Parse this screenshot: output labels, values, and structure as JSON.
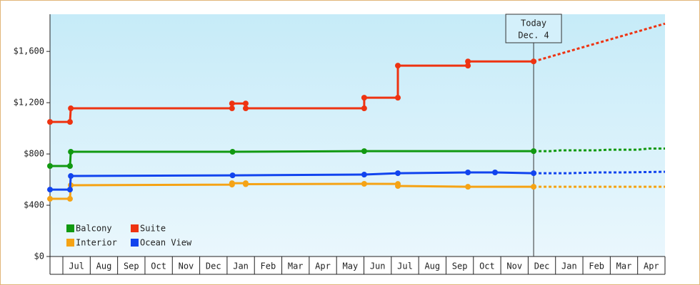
{
  "chart_data": {
    "type": "line",
    "step": true,
    "ylim": [
      0,
      1890
    ],
    "yticks": [
      {
        "value": 0,
        "label": "$0"
      },
      {
        "value": 400,
        "label": "$400"
      },
      {
        "value": 800,
        "label": "$800"
      },
      {
        "value": 1200,
        "label": "$1,200"
      },
      {
        "value": 1600,
        "label": "$1,600"
      }
    ],
    "xlim": [
      -0.47,
      22
    ],
    "xticks": [
      {
        "value": 0,
        "label": "Jul"
      },
      {
        "value": 1,
        "label": "Aug"
      },
      {
        "value": 2,
        "label": "Sep"
      },
      {
        "value": 3,
        "label": "Oct"
      },
      {
        "value": 4,
        "label": "Nov"
      },
      {
        "value": 5,
        "label": "Dec"
      },
      {
        "value": 6,
        "label": "Jan"
      },
      {
        "value": 7,
        "label": "Feb"
      },
      {
        "value": 8,
        "label": "Mar"
      },
      {
        "value": 9,
        "label": "Apr"
      },
      {
        "value": 10,
        "label": "May"
      },
      {
        "value": 11,
        "label": "Jun"
      },
      {
        "value": 12,
        "label": "Jul"
      },
      {
        "value": 13,
        "label": "Aug"
      },
      {
        "value": 14,
        "label": "Sep"
      },
      {
        "value": 15,
        "label": "Oct"
      },
      {
        "value": 16,
        "label": "Nov"
      },
      {
        "value": 17,
        "label": "Dec"
      },
      {
        "value": 18,
        "label": "Jan"
      },
      {
        "value": 19,
        "label": "Feb"
      },
      {
        "value": 20,
        "label": "Mar"
      },
      {
        "value": 21,
        "label": "Apr"
      }
    ],
    "annotation": {
      "x": 17.2,
      "lines": [
        "Today",
        "Dec. 4"
      ]
    },
    "legend": "lower-left",
    "series": [
      {
        "name": "Balcony",
        "color": "#119911",
        "x": [
          -0.47,
          0.26,
          0.29,
          6.2,
          11.01,
          17.2
        ],
        "values": [
          706,
          706,
          817,
          817,
          822,
          822
        ],
        "forecast": {
          "x": [
            17.2,
            17.8,
            18.2,
            19.5,
            19.9,
            21,
            21.4,
            22
          ],
          "values": [
            822,
            822,
            828,
            828,
            833,
            833,
            842,
            842
          ]
        }
      },
      {
        "name": "Suite",
        "color": "#ee3311",
        "x": [
          -0.47,
          0.26,
          0.29,
          6.18,
          6.18,
          6.68,
          6.68,
          11.01,
          11.01,
          12.24,
          12.24,
          14.8,
          14.8,
          17.2
        ],
        "values": [
          1050,
          1050,
          1156,
          1156,
          1194,
          1194,
          1156,
          1156,
          1239,
          1239,
          1489,
          1489,
          1522,
          1522
        ],
        "forecast": {
          "x": [
            17.2,
            22
          ],
          "values": [
            1522,
            1817
          ]
        }
      },
      {
        "name": "Interior",
        "color": "#f5a315",
        "x": [
          -0.47,
          0.26,
          0.29,
          6.18,
          6.18,
          6.68,
          6.68,
          11.01,
          12.24,
          12.24,
          14.8,
          17.2
        ],
        "values": [
          450,
          450,
          556,
          561,
          572,
          572,
          564,
          567,
          566,
          550,
          544,
          544
        ],
        "forecast": {
          "x": [
            17.2,
            22
          ],
          "values": [
            544,
            544
          ]
        }
      },
      {
        "name": "Ocean View",
        "color": "#1144ee",
        "x": [
          -0.47,
          0.26,
          0.29,
          6.2,
          11.01,
          12.24,
          14.8,
          15.79,
          17.2
        ],
        "values": [
          522,
          522,
          628,
          633,
          639,
          650,
          656,
          656,
          650
        ],
        "forecast": {
          "x": [
            17.2,
            18.5,
            19.5,
            20.5,
            22
          ],
          "values": [
            650,
            650,
            656,
            656,
            661
          ]
        }
      }
    ]
  }
}
